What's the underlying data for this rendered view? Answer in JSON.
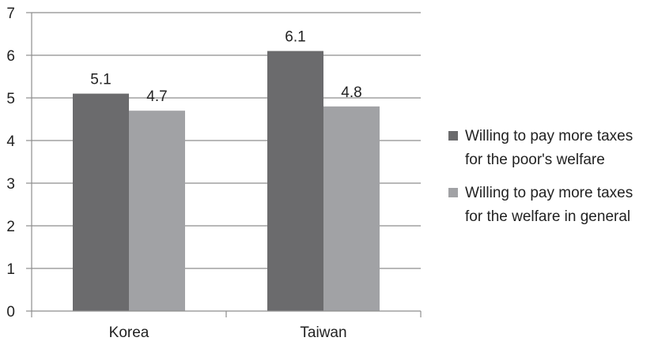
{
  "chart_data": {
    "type": "bar",
    "title": "",
    "xlabel": "",
    "ylabel": "",
    "categories": [
      "Korea",
      "Taiwan"
    ],
    "ylim": [
      0,
      7
    ],
    "yticks": [
      "0",
      "1",
      "2",
      "3",
      "4",
      "5",
      "6",
      "7"
    ],
    "grid": true,
    "legend_position": "right",
    "series": [
      {
        "name_lines": [
          "Willing to pay more taxes",
          "for the poor's welfare"
        ],
        "values": [
          5.1,
          6.1
        ],
        "labels": [
          "5.1",
          "6.1"
        ],
        "color": "#6b6b6d"
      },
      {
        "name_lines": [
          "Willing to pay more taxes",
          "for the welfare in general"
        ],
        "values": [
          4.7,
          4.8
        ],
        "labels": [
          "4.7",
          "4.8"
        ],
        "color": "#a1a2a5"
      }
    ]
  }
}
